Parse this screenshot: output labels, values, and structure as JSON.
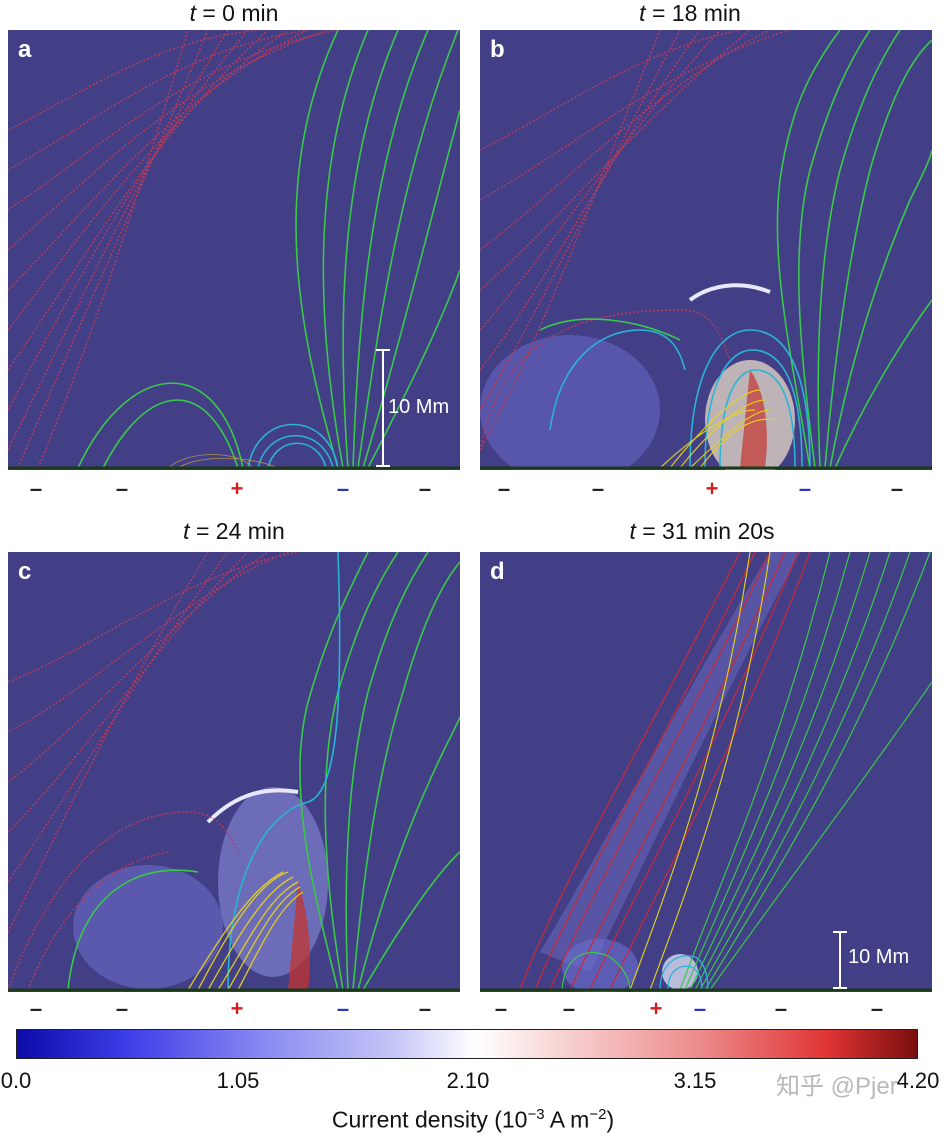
{
  "panels": [
    {
      "letter": "a",
      "title_var": "t",
      "title_rest": " = 0 min",
      "polarities": [
        {
          "sign": "–",
          "kind": "neg"
        },
        {
          "sign": "–",
          "kind": "neg"
        },
        {
          "sign": "+",
          "kind": "plus"
        },
        {
          "sign": "–",
          "kind": "minus-blue"
        },
        {
          "sign": "–",
          "kind": "neg"
        }
      ],
      "scale_bar": "10 Mm"
    },
    {
      "letter": "b",
      "title_var": "t",
      "title_rest": " = 18 min",
      "polarities": [
        {
          "sign": "–",
          "kind": "neg"
        },
        {
          "sign": "–",
          "kind": "neg"
        },
        {
          "sign": "+",
          "kind": "plus"
        },
        {
          "sign": "–",
          "kind": "minus-blue"
        },
        {
          "sign": "–",
          "kind": "neg"
        }
      ]
    },
    {
      "letter": "c",
      "title_var": "t",
      "title_rest": " = 24 min",
      "polarities": [
        {
          "sign": "–",
          "kind": "neg"
        },
        {
          "sign": "–",
          "kind": "neg"
        },
        {
          "sign": "+",
          "kind": "plus"
        },
        {
          "sign": "–",
          "kind": "minus-blue"
        },
        {
          "sign": "–",
          "kind": "neg"
        }
      ]
    },
    {
      "letter": "d",
      "title_var": "t",
      "title_rest": " = 31 min 20s",
      "polarities": [
        {
          "sign": "–",
          "kind": "neg"
        },
        {
          "sign": "–",
          "kind": "neg"
        },
        {
          "sign": "+",
          "kind": "plus"
        },
        {
          "sign": "–",
          "kind": "minus-blue"
        },
        {
          "sign": "–",
          "kind": "neg"
        },
        {
          "sign": "–",
          "kind": "neg"
        }
      ],
      "scale_bar": "10 Mm"
    }
  ],
  "colorbar": {
    "ticks": [
      "0.0",
      "1.05",
      "2.10",
      "3.15",
      "4.20"
    ],
    "label_main": "Current density (10",
    "label_exp1": "−3",
    "label_mid": " A m",
    "label_exp2": "−2",
    "label_end": ")",
    "colors": [
      "#0b0ba8",
      "#ffffff",
      "#7a0e0e"
    ]
  },
  "watermark": "知乎 @Pjer",
  "colors": {
    "background": "#423f87",
    "red_lines": "#b23a5a",
    "green_lines": "#39c84a",
    "cyan_lines": "#2bb3d6",
    "yellow_lines": "#e8d41c"
  }
}
